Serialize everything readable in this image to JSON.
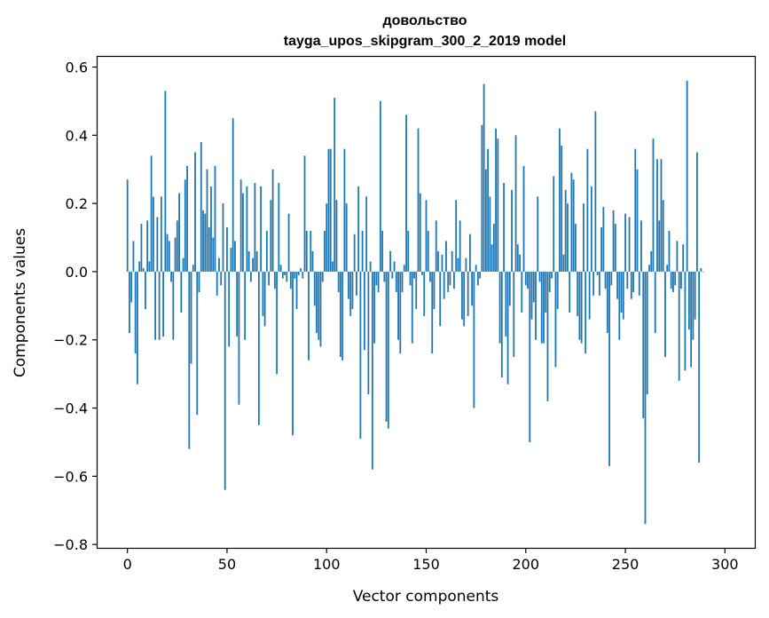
{
  "chart_data": {
    "type": "bar",
    "title_line1": "довольство",
    "title_line2": "tayga_upos_skipgram_300_2_2019 model",
    "xlabel": "Vector components",
    "ylabel": "Components values",
    "xlim": [
      -15,
      315
    ],
    "ylim": [
      -0.81,
      0.63
    ],
    "xticks": [
      0,
      50,
      100,
      150,
      200,
      250,
      300
    ],
    "xtick_labels": [
      "0",
      "50",
      "100",
      "150",
      "200",
      "250",
      "300"
    ],
    "yticks": [
      -0.8,
      -0.6,
      -0.4,
      -0.2,
      0.0,
      0.2,
      0.4,
      0.6
    ],
    "ytick_labels": [
      "−0.8",
      "−0.6",
      "−0.4",
      "−0.2",
      "0.0",
      "0.2",
      "0.4",
      "0.6"
    ],
    "bar_color": "#1f77b4",
    "grid": false,
    "values": [
      0.27,
      -0.18,
      -0.09,
      0.09,
      -0.24,
      -0.33,
      0.03,
      0.14,
      0.01,
      -0.11,
      0.15,
      0.03,
      0.34,
      0.22,
      -0.2,
      0.16,
      -0.2,
      0.22,
      -0.19,
      0.53,
      0.11,
      0.09,
      -0.03,
      -0.2,
      0.1,
      0.15,
      0.23,
      -0.12,
      0.04,
      0.27,
      0.31,
      -0.52,
      -0.27,
      0.02,
      0.35,
      -0.42,
      -0.06,
      0.38,
      0.18,
      0.17,
      0.3,
      0.13,
      0.25,
      0.1,
      0.31,
      -0.07,
      0.04,
      -0.04,
      0.2,
      -0.64,
      0.13,
      -0.22,
      0.07,
      0.45,
      0.09,
      -0.19,
      -0.39,
      0.27,
      0.23,
      -0.2,
      0.25,
      0.06,
      -0.03,
      0.04,
      0.26,
      0.06,
      -0.45,
      0.25,
      -0.13,
      -0.16,
      0.12,
      -0.04,
      0.21,
      0.3,
      -0.05,
      -0.3,
      0.26,
      0.02,
      -0.02,
      -0.01,
      -0.03,
      0.17,
      -0.05,
      -0.48,
      -0.02,
      -0.11,
      -0.01,
      0.01,
      -0.02,
      0.34,
      0.12,
      -0.26,
      0.12,
      0.06,
      -0.1,
      -0.18,
      -0.2,
      -0.22,
      -0.03,
      0.12,
      0.2,
      0.36,
      0.36,
      0.03,
      0.51,
      0.21,
      -0.06,
      -0.25,
      -0.26,
      0.36,
      0.2,
      -0.08,
      -0.13,
      -0.11,
      0.11,
      -0.07,
      0.25,
      -0.49,
      0.12,
      -0.23,
      0.22,
      -0.36,
      0.03,
      -0.58,
      -0.21,
      -0.04,
      -0.06,
      0.5,
      0.12,
      -0.03,
      -0.44,
      -0.46,
      0.06,
      -0.02,
      0.03,
      -0.06,
      -0.2,
      -0.24,
      -0.06,
      0.02,
      0.46,
      0.12,
      -0.04,
      -0.21,
      -0.02,
      -0.11,
      0.42,
      0.23,
      -0.01,
      -0.13,
      0.21,
      0.12,
      -0.03,
      -0.24,
      -0.11,
      0.15,
      0.06,
      -0.16,
      0.05,
      -0.08,
      0.09,
      -0.06,
      -0.04,
      0.06,
      -0.05,
      0.21,
      0.04,
      0.15,
      -0.14,
      -0.16,
      0.04,
      -0.13,
      0.11,
      -0.1,
      -0.4,
      0.02,
      -0.04,
      -0.02,
      0.43,
      0.55,
      0.3,
      0.36,
      0.22,
      0.08,
      0.14,
      0.42,
      0.39,
      -0.21,
      -0.31,
      0.26,
      -0.19,
      -0.33,
      -0.1,
      0.24,
      -0.25,
      0.4,
      0.08,
      0.05,
      -0.12,
      0.31,
      -0.04,
      -0.05,
      -0.5,
      -0.14,
      -0.09,
      -0.2,
      0.22,
      -0.03,
      -0.21,
      -0.21,
      -0.12,
      -0.38,
      -0.06,
      -0.02,
      0.28,
      -0.28,
      -0.11,
      0.42,
      0.37,
      0.05,
      0.24,
      0.2,
      -0.12,
      0.29,
      0.27,
      0.14,
      -0.13,
      -0.2,
      -0.21,
      0.2,
      -0.24,
      0.36,
      -0.14,
      0.25,
      -0.07,
      0.47,
      -0.01,
      -0.07,
      0.13,
      0.19,
      -0.05,
      -0.18,
      -0.57,
      -0.04,
      0.18,
      0.14,
      -0.08,
      -0.2,
      -0.12,
      -0.14,
      0.17,
      -0.05,
      0.16,
      -0.08,
      -0.06,
      0.36,
      0.3,
      -0.07,
      0.15,
      -0.43,
      -0.74,
      -0.36,
      0.02,
      0.06,
      0.39,
      -0.18,
      0.33,
      0.15,
      0.33,
      0.21,
      -0.25,
      0.02,
      0.12,
      -0.05,
      -0.06,
      -0.04,
      0.09,
      -0.32,
      -0.05,
      0.08,
      -0.29,
      0.56,
      -0.17,
      -0.28,
      -0.2,
      -0.14,
      0.35,
      -0.56,
      0.01,
      0.0
    ]
  }
}
